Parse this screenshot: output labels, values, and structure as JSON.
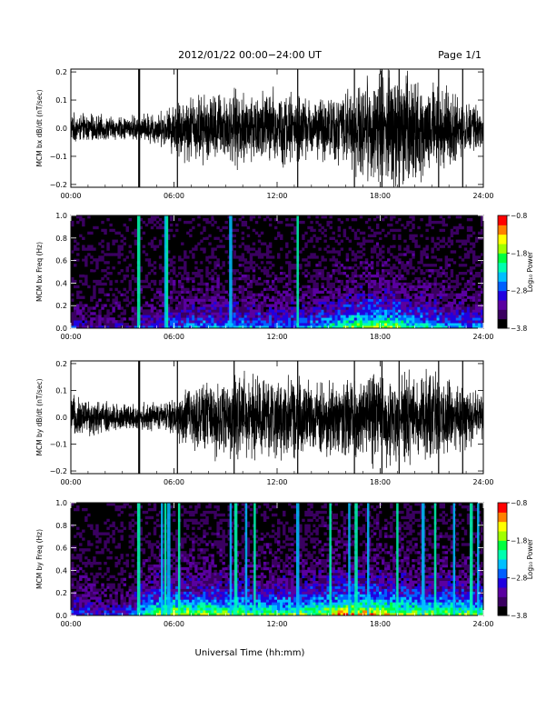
{
  "header": {
    "title": "2012/01/22  00:00−24:00 UT",
    "page": "Page 1/1"
  },
  "xlabel": "Universal Time (hh:mm)",
  "colors": {
    "background": "#ffffff",
    "plot_background": "#000000",
    "trace": "#000000",
    "colormap": [
      "#000000",
      "#3a0060",
      "#5a00a0",
      "#2000e0",
      "#0060ff",
      "#00c0ff",
      "#00ffb0",
      "#00ff40",
      "#a0ff00",
      "#ffff00",
      "#ff8000",
      "#ff0000"
    ]
  },
  "chart_data": [
    {
      "type": "line",
      "name": "bx-ts",
      "ylabel": "MCM bx dB/dt (nT/sec)",
      "xticks": [
        "00:00",
        "06:00",
        "12:00",
        "18:00",
        "24:00"
      ],
      "yticks": [
        "−0.2",
        "−0.1",
        "0.0",
        "0.1",
        "0.2"
      ],
      "xlim_hours": [
        0,
        24
      ],
      "ylim": [
        -0.21,
        0.21
      ],
      "amplitude_envelope": {
        "hours": [
          0,
          3,
          5.5,
          6.5,
          9,
          12,
          14,
          16,
          18,
          19,
          21,
          23,
          24
        ],
        "amplitude": [
          0.04,
          0.03,
          0.05,
          0.09,
          0.1,
          0.11,
          0.08,
          0.1,
          0.16,
          0.17,
          0.13,
          0.07,
          0.05
        ]
      },
      "spikes_hours": [
        3.95,
        4.0,
        6.2,
        13.2,
        16.5,
        18.1,
        19.1,
        21.4,
        22.8
      ]
    },
    {
      "type": "heatmap",
      "name": "bx-spec",
      "ylabel": "MCM bx Freq (Hz)",
      "xticks": [
        "00:00",
        "06:00",
        "12:00",
        "18:00",
        "24:00"
      ],
      "yticks": [
        "0.0",
        "0.2",
        "0.4",
        "0.6",
        "0.8",
        "1.0"
      ],
      "xlim_hours": [
        0,
        24
      ],
      "ylim_hz": [
        0,
        1.0
      ],
      "colorbar": {
        "label": "Log₁₀ Power",
        "ticks": [
          "−0.8",
          "−1.8",
          "−2.8",
          "−3.8"
        ],
        "range": [
          -3.8,
          -0.8
        ]
      },
      "bright_band_hours": [
        3.95,
        5.5,
        5.6,
        9.3,
        13.2
      ],
      "activity_envelope": {
        "hours": [
          0,
          3,
          6,
          9,
          12,
          14,
          16,
          18,
          20,
          22,
          24
        ],
        "level": [
          0.2,
          0.15,
          0.3,
          0.35,
          0.3,
          0.35,
          0.5,
          0.6,
          0.45,
          0.35,
          0.3
        ]
      }
    },
    {
      "type": "line",
      "name": "by-ts",
      "ylabel": "MCM by dB/dt (nT/sec)",
      "xticks": [
        "00:00",
        "06:00",
        "12:00",
        "18:00",
        "24:00"
      ],
      "yticks": [
        "−0.2",
        "−0.1",
        "0.0",
        "0.1",
        "0.2"
      ],
      "xlim_hours": [
        0,
        24
      ],
      "ylim": [
        -0.21,
        0.21
      ],
      "amplitude_envelope": {
        "hours": [
          0,
          3,
          5.5,
          6.5,
          9,
          12,
          14,
          16,
          18,
          19,
          21,
          23,
          24
        ],
        "amplitude": [
          0.06,
          0.04,
          0.04,
          0.08,
          0.12,
          0.12,
          0.1,
          0.11,
          0.14,
          0.14,
          0.12,
          0.09,
          0.06
        ]
      },
      "spikes_hours": [
        3.95,
        4.0,
        6.2,
        9.5,
        13.2,
        16.5,
        18.1,
        19.1,
        21.4,
        22.8
      ]
    },
    {
      "type": "heatmap",
      "name": "by-spec",
      "ylabel": "MCM by Freq (Hz)",
      "xticks": [
        "00:00",
        "06:00",
        "12:00",
        "18:00",
        "24:00"
      ],
      "yticks": [
        "0.0",
        "0.2",
        "0.4",
        "0.6",
        "0.8",
        "1.0"
      ],
      "xlim_hours": [
        0,
        24
      ],
      "ylim_hz": [
        0,
        1.0
      ],
      "colorbar": {
        "label": "Log₁₀ Power",
        "ticks": [
          "−0.8",
          "−1.8",
          "−2.8",
          "−3.8"
        ],
        "range": [
          -3.8,
          -0.8
        ]
      },
      "bright_band_hours": [
        3.95,
        5.3,
        5.5,
        5.7,
        6.3,
        9.3,
        9.6,
        10.2,
        10.7,
        13.2,
        15.1,
        16.2,
        16.6,
        17.3,
        19.0,
        20.5,
        21.2,
        22.3,
        23.3,
        23.7
      ],
      "activity_envelope": {
        "hours": [
          0,
          3,
          5,
          6,
          9,
          12,
          14,
          16,
          18,
          20,
          22,
          24
        ],
        "level": [
          0.25,
          0.2,
          0.55,
          0.6,
          0.55,
          0.5,
          0.55,
          0.7,
          0.65,
          0.55,
          0.55,
          0.5
        ]
      }
    }
  ]
}
